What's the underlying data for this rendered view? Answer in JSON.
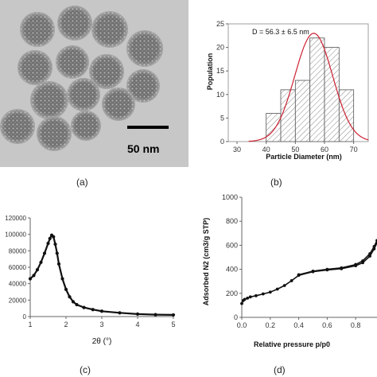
{
  "captions": {
    "a": "(a)",
    "b": "(b)",
    "c": "(c)",
    "d": "(d)"
  },
  "tem": {
    "scale_bar_label": "50 nm",
    "background_color": "#c7c7c7",
    "particle_color": "#7a7a7a"
  },
  "chart_data": [
    {
      "panel": "b",
      "type": "bar",
      "annotation": "D = 56.3 ± 6.5 nm",
      "xlabel": "Particle Diameter (nm)",
      "ylabel": "Population",
      "xlim": [
        27,
        75
      ],
      "ylim": [
        0,
        25
      ],
      "xticks": [
        30,
        40,
        50,
        60,
        70
      ],
      "yticks": [
        0,
        5,
        10,
        15,
        20,
        25
      ],
      "bins": [
        {
          "x0": 40,
          "x1": 45,
          "value": 6
        },
        {
          "x0": 45,
          "x1": 50,
          "value": 11
        },
        {
          "x0": 50,
          "x1": 55,
          "value": 13
        },
        {
          "x0": 55,
          "x1": 60,
          "value": 22
        },
        {
          "x0": 60,
          "x1": 65,
          "value": 20
        },
        {
          "x0": 65,
          "x1": 70,
          "value": 11
        }
      ],
      "fit": {
        "type": "gaussian",
        "mean": 56.3,
        "sd": 6.5,
        "peak": 23,
        "color": "#cc2233"
      },
      "bar_hatch": true,
      "grid": false
    },
    {
      "panel": "c",
      "type": "line",
      "xlabel": "2θ (°)",
      "ylabel": "",
      "xlim": [
        1,
        5
      ],
      "ylim": [
        0,
        120000
      ],
      "xticks": [
        1,
        2,
        3,
        4,
        5
      ],
      "yticks": [
        0,
        20000,
        40000,
        60000,
        80000,
        100000,
        120000
      ],
      "series": [
        {
          "x": [
            1.0,
            1.1,
            1.2,
            1.3,
            1.4,
            1.5,
            1.55,
            1.6,
            1.65,
            1.7,
            1.75,
            1.8,
            1.9,
            2.0,
            2.1,
            2.2,
            2.3,
            2.5,
            2.75,
            3.0,
            3.5,
            4.0,
            4.5,
            5.0
          ],
          "y": [
            46000,
            50000,
            57000,
            66000,
            77000,
            89000,
            95000,
            99000,
            97000,
            88000,
            77000,
            64000,
            46000,
            33000,
            24000,
            18000,
            14500,
            11000,
            8500,
            6500,
            4500,
            3000,
            2300,
            2000
          ],
          "marker": "circle",
          "color": "#111111"
        }
      ],
      "grid": false
    },
    {
      "panel": "d",
      "type": "line",
      "xlabel": "Relative pressure p/p0",
      "ylabel": "Adsorbed N2 (cm3/g STP)",
      "xlim": [
        0,
        0.95
      ],
      "ylim": [
        0,
        1000
      ],
      "xticks": [
        0.0,
        0.2,
        0.4,
        0.6,
        0.8
      ],
      "yticks": [
        0,
        200,
        400,
        600,
        800,
        1000
      ],
      "series": [
        {
          "name": "",
          "x": [
            0.0,
            0.01,
            0.02,
            0.04,
            0.06,
            0.1,
            0.15,
            0.2,
            0.25,
            0.3,
            0.35,
            0.4,
            0.5,
            0.6,
            0.7,
            0.8,
            0.85,
            0.9,
            0.93,
            0.95
          ],
          "y": [
            115,
            140,
            150,
            160,
            170,
            180,
            195,
            210,
            235,
            265,
            305,
            350,
            380,
            395,
            405,
            430,
            455,
            510,
            570,
            620
          ],
          "marker": "circle",
          "color": "#111111"
        },
        {
          "name": "",
          "x": [
            0.4,
            0.5,
            0.6,
            0.7,
            0.8,
            0.85,
            0.9,
            0.93,
            0.95
          ],
          "y": [
            355,
            385,
            400,
            412,
            440,
            470,
            530,
            590,
            640
          ],
          "marker": "circle",
          "color": "#111111"
        }
      ],
      "grid": false
    }
  ]
}
